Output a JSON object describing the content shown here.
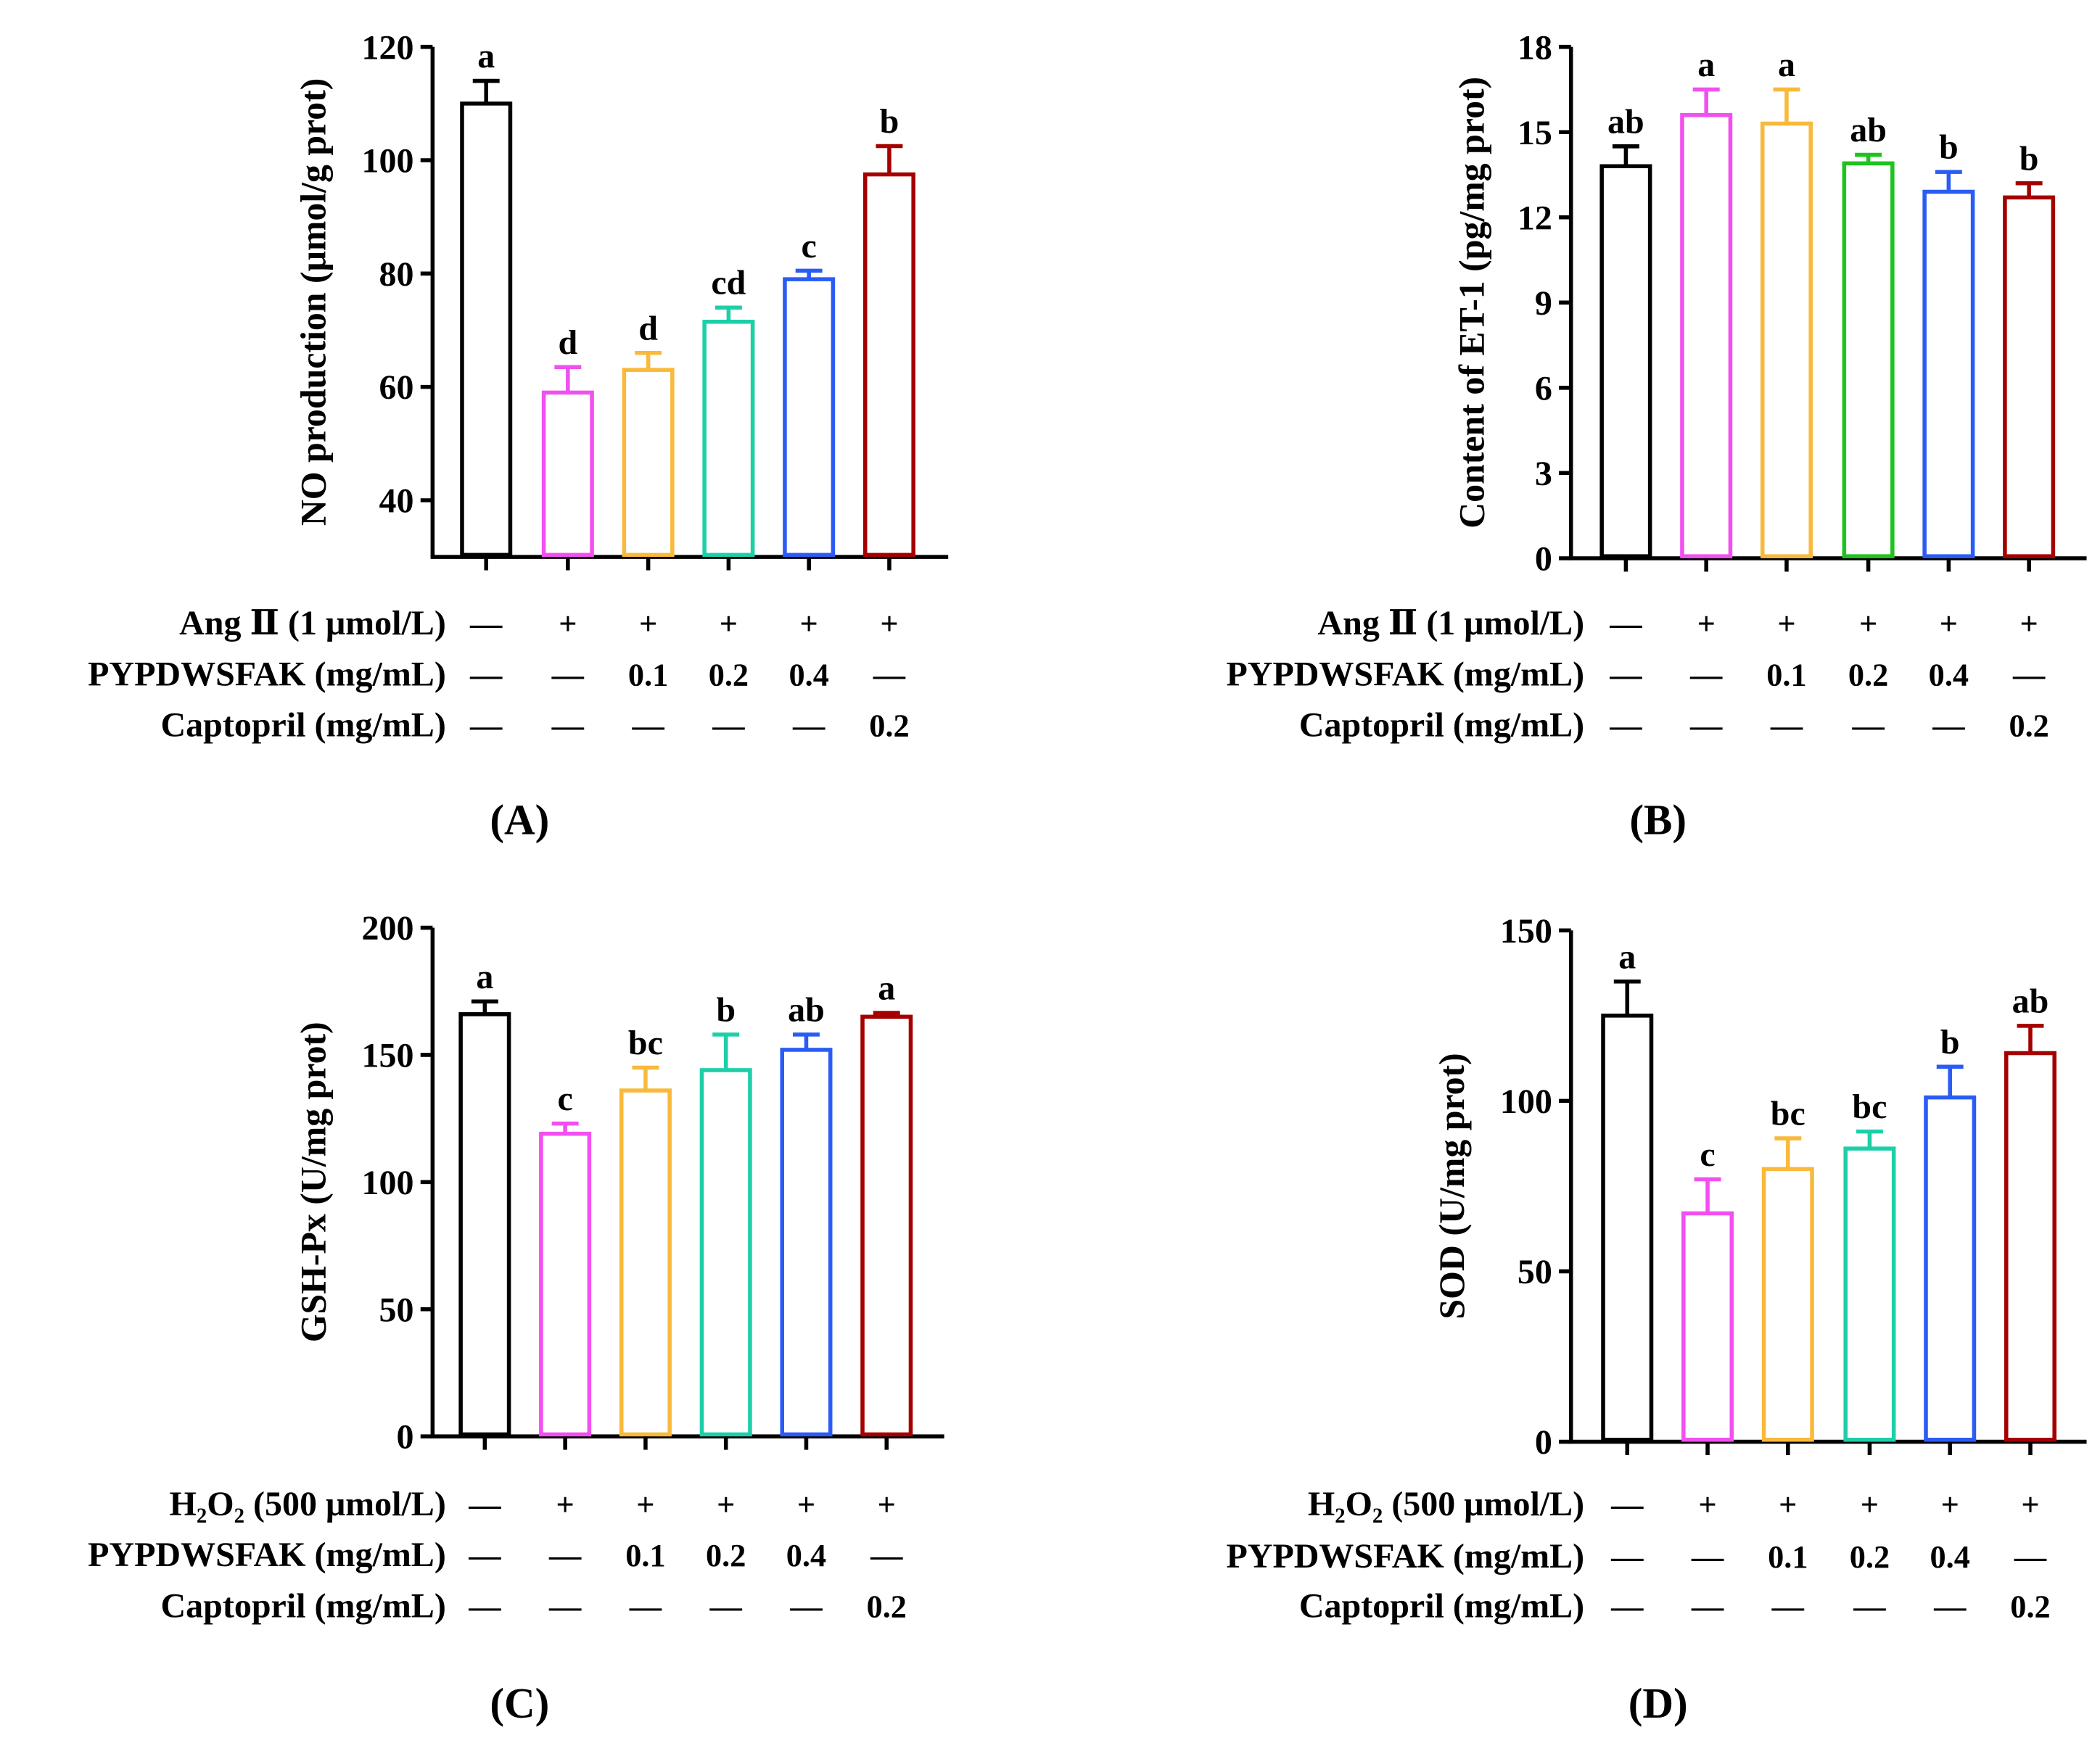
{
  "chart_data": [
    {
      "type": "bar",
      "panel_label": "(A)",
      "ylabel": "NO production (μmol/g prot)",
      "ylim": [
        30,
        120
      ],
      "yticks": [
        40,
        60,
        80,
        100,
        120
      ],
      "values": [
        110,
        59,
        63,
        71.5,
        79,
        97.5
      ],
      "errors": [
        4,
        4.5,
        3,
        2.5,
        1.5,
        5
      ],
      "letters": [
        "a",
        "d",
        "d",
        "cd",
        "c",
        "b"
      ],
      "colors": [
        "#000000",
        "#f24ff0",
        "#f9b93b",
        "#1dcfa8",
        "#2a5cf5",
        "#a50000"
      ],
      "treatment_rows": [
        {
          "label": "Ang Ⅱ (1 μmol/L)",
          "cells": [
            "—",
            "+",
            "+",
            "+",
            "+",
            "+"
          ]
        },
        {
          "label": "PYPDWSFAK (mg/mL)",
          "cells": [
            "—",
            "—",
            "0.1",
            "0.2",
            "0.4",
            "—"
          ]
        },
        {
          "label": "Captopril (mg/mL)",
          "cells": [
            "—",
            "—",
            "—",
            "—",
            "—",
            "0.2"
          ]
        }
      ]
    },
    {
      "type": "bar",
      "panel_label": "(B)",
      "ylabel": "Content of ET-1 (pg/mg prot)",
      "ylim": [
        0,
        18
      ],
      "yticks": [
        0,
        3,
        6,
        9,
        12,
        15,
        18
      ],
      "values": [
        13.8,
        15.6,
        15.3,
        13.9,
        12.9,
        12.7
      ],
      "errors": [
        0.7,
        0.9,
        1.2,
        0.3,
        0.7,
        0.5
      ],
      "letters": [
        "ab",
        "a",
        "a",
        "ab",
        "b",
        "b"
      ],
      "colors": [
        "#000000",
        "#f24ff0",
        "#f9b93b",
        "#1ec31e",
        "#2a5cf5",
        "#a50000"
      ],
      "treatment_rows": [
        {
          "label": "Ang Ⅱ (1 μmol/L)",
          "cells": [
            "—",
            "+",
            "+",
            "+",
            "+",
            "+"
          ]
        },
        {
          "label": "PYPDWSFAK (mg/mL)",
          "cells": [
            "—",
            "—",
            "0.1",
            "0.2",
            "0.4",
            "—"
          ]
        },
        {
          "label": "Captopril (mg/mL)",
          "cells": [
            "—",
            "—",
            "—",
            "—",
            "—",
            "0.2"
          ]
        }
      ]
    },
    {
      "type": "bar",
      "panel_label": "(C)",
      "ylabel": "GSH-Px (U/mg prot)",
      "ylim": [
        0,
        200
      ],
      "yticks": [
        0,
        50,
        100,
        150,
        200
      ],
      "values": [
        166,
        119,
        136,
        144,
        152,
        165
      ],
      "errors": [
        5,
        4,
        9,
        14,
        6,
        1.5
      ],
      "letters": [
        "a",
        "c",
        "bc",
        "b",
        "ab",
        "a"
      ],
      "colors": [
        "#000000",
        "#f24ff0",
        "#f9b93b",
        "#1dcfa8",
        "#2a5cf5",
        "#a50000"
      ],
      "treatment_rows": [
        {
          "label": "H₂O₂ (500 μmol/L)",
          "cells": [
            "—",
            "+",
            "+",
            "+",
            "+",
            "+"
          ]
        },
        {
          "label": "PYPDWSFAK (mg/mL)",
          "cells": [
            "—",
            "—",
            "0.1",
            "0.2",
            "0.4",
            "—"
          ]
        },
        {
          "label": "Captopril (mg/mL)",
          "cells": [
            "—",
            "—",
            "—",
            "—",
            "—",
            "0.2"
          ]
        }
      ]
    },
    {
      "type": "bar",
      "panel_label": "(D)",
      "ylabel": "SOD (U/mg prot)",
      "ylim": [
        0,
        150
      ],
      "yticks": [
        0,
        50,
        100,
        150
      ],
      "values": [
        125,
        67,
        80,
        86,
        101,
        114
      ],
      "errors": [
        10,
        10,
        9,
        5,
        9,
        8
      ],
      "letters": [
        "a",
        "c",
        "bc",
        "bc",
        "b",
        "ab"
      ],
      "colors": [
        "#000000",
        "#f24ff0",
        "#f9b93b",
        "#1dcfa8",
        "#2a5cf5",
        "#a50000"
      ],
      "treatment_rows": [
        {
          "label": "H₂O₂ (500 μmol/L)",
          "cells": [
            "—",
            "+",
            "+",
            "+",
            "+",
            "+"
          ]
        },
        {
          "label": "PYPDWSFAK (mg/mL)",
          "cells": [
            "—",
            "—",
            "0.1",
            "0.2",
            "0.4",
            "—"
          ]
        },
        {
          "label": "Captopril (mg/mL)",
          "cells": [
            "—",
            "—",
            "—",
            "—",
            "—",
            "0.2"
          ]
        }
      ]
    }
  ]
}
